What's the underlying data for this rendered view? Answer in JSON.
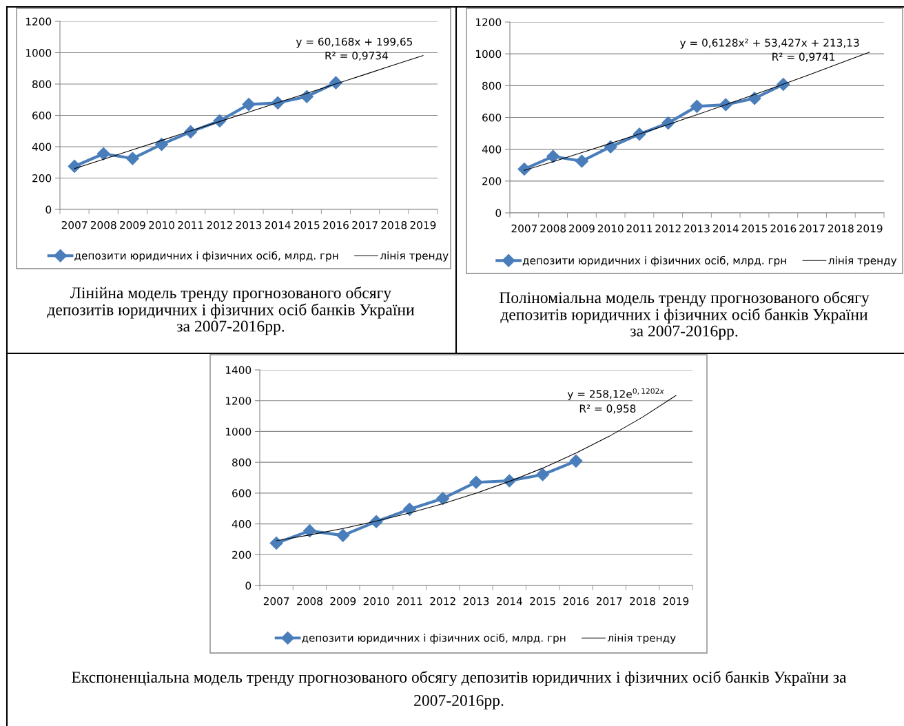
{
  "chart_data": [
    {
      "type": "line",
      "categories": [
        "2007",
        "2008",
        "2009",
        "2010",
        "2011",
        "2012",
        "2013",
        "2014",
        "2015",
        "2016",
        "2017",
        "2018",
        "2019"
      ],
      "series": [
        {
          "name": "депозити юридичних і фізичних осіб, млрд. грн",
          "color": "#4a7ebb",
          "marker": "diamond",
          "values": [
            275,
            355,
            325,
            415,
            495,
            565,
            670,
            680,
            720,
            808,
            null,
            null,
            null
          ]
        },
        {
          "name": "лінія тренду",
          "type": "line",
          "color": "#000000",
          "marker": "none",
          "values": [
            260,
            320,
            380,
            440,
            501,
            561,
            621,
            681,
            741,
            801,
            861,
            922,
            982
          ]
        }
      ],
      "ylim": [
        0,
        1200
      ],
      "yticks": [
        0,
        200,
        400,
        600,
        800,
        1000,
        1200
      ],
      "grid": "y",
      "legend": "bottom",
      "annotations": [
        "y = 60,168x + 199,65",
        "R² = 0,9734",
        "Лінійна модель тренду прогнозованого обсягу\nдепозитів юридичних і фізичних осіб банків України\nза 2007-2016рр."
      ]
    },
    {
      "type": "line",
      "categories": [
        "2007",
        "2008",
        "2009",
        "2010",
        "2011",
        "2012",
        "2013",
        "2014",
        "2015",
        "2016",
        "2017",
        "2018",
        "2019"
      ],
      "series": [
        {
          "name": "депозити юридичних і фізичних осіб, млрд. грн",
          "color": "#4a7ebb",
          "marker": "diamond",
          "values": [
            275,
            355,
            325,
            415,
            495,
            565,
            670,
            680,
            720,
            808,
            null,
            null,
            null
          ]
        },
        {
          "name": "лінія тренду",
          "type": "line",
          "color": "#000000",
          "marker": "none",
          "values": [
            267,
            322,
            379,
            437,
            496,
            556,
            617,
            680,
            744,
            809,
            875,
            943,
            1011
          ]
        }
      ],
      "ylim": [
        0,
        1200
      ],
      "yticks": [
        0,
        200,
        400,
        600,
        800,
        1000,
        1200
      ],
      "grid": "y",
      "legend": "bottom",
      "annotations": [
        "y = 0,6128x² + 53,427x + 213,13",
        "R² = 0,9741",
        "Поліноміальна модель тренду прогнозованого обсягу\nдепозитів юридичних і фізичних осіб банків України\nза 2007-2016рр."
      ]
    },
    {
      "type": "line",
      "categories": [
        "2007",
        "2008",
        "2009",
        "2010",
        "2011",
        "2012",
        "2013",
        "2014",
        "2015",
        "2016",
        "2017",
        "2018",
        "2019"
      ],
      "series": [
        {
          "name": "депозити юридичних і фізичних осіб, млрд. грн",
          "color": "#4a7ebb",
          "marker": "diamond",
          "values": [
            275,
            355,
            325,
            415,
            495,
            565,
            670,
            680,
            720,
            808,
            null,
            null,
            null
          ]
        },
        {
          "name": "лінія тренду",
          "type": "line",
          "color": "#000000",
          "marker": "none",
          "values": [
            291,
            328,
            370,
            418,
            471,
            531,
            599,
            676,
            762,
            860,
            969,
            1093,
            1233
          ]
        }
      ],
      "ylim": [
        0,
        1400
      ],
      "yticks": [
        0,
        200,
        400,
        600,
        800,
        1000,
        1200,
        1400
      ],
      "grid": "y",
      "legend": "bottom",
      "annotations": [
        "y = 258,12e$^{0,1202x}$",
        "R² = 0,958",
        "Експоненціальна модель тренду прогнозованого обсягу депозитів юридичних і фізичних осіб банків України за\n2007-2016рр."
      ]
    }
  ]
}
